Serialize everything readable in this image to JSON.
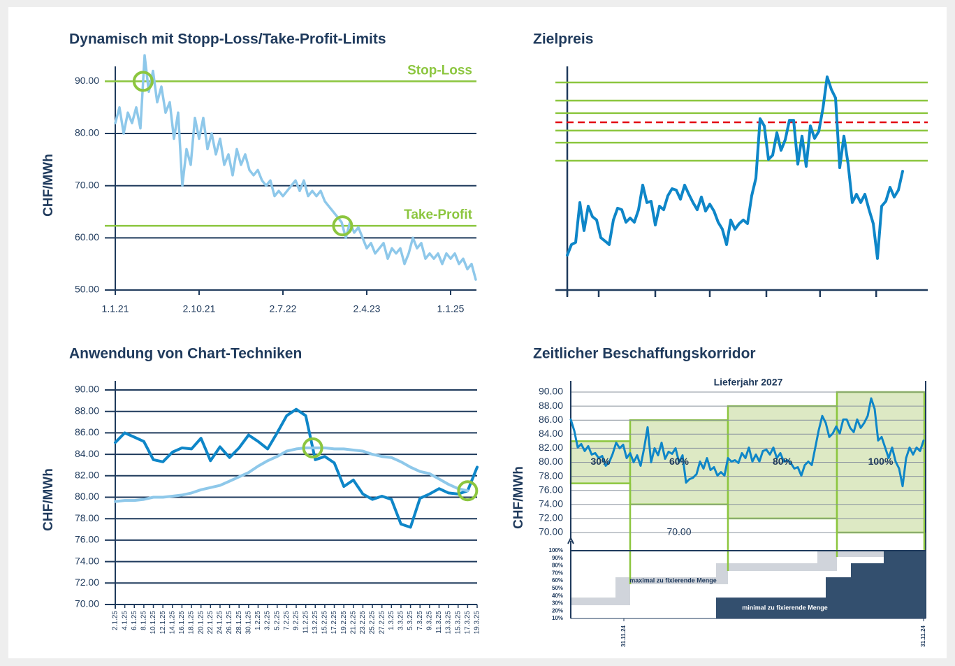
{
  "chart_data": [
    {
      "type": "line",
      "title": "Dynamisch mit Stopp-Loss/Take-Profit-Limits",
      "y_label": "CHF/MWh",
      "categories": [
        "1.1.21",
        null,
        null,
        null,
        null,
        null,
        null,
        null,
        null,
        null,
        null,
        null,
        null,
        null,
        null,
        null,
        null,
        null,
        null,
        null,
        "2.10.21",
        null,
        null,
        null,
        null,
        null,
        null,
        null,
        null,
        null,
        null,
        null,
        null,
        null,
        null,
        null,
        null,
        null,
        null,
        null,
        "2.7.22",
        null,
        null,
        null,
        null,
        null,
        null,
        null,
        null,
        null,
        null,
        null,
        null,
        null,
        null,
        null,
        null,
        null,
        null,
        null,
        "2.4.23",
        null,
        null,
        null,
        null,
        null,
        null,
        null,
        null,
        null,
        null,
        null,
        null,
        null,
        null,
        null,
        null,
        null,
        null,
        null,
        "1.1.25",
        null,
        null,
        null,
        null,
        null,
        null
      ],
      "series": [
        {
          "color": "#8ec8ea",
          "values": [
            82,
            85,
            80,
            84,
            82,
            85,
            81,
            95,
            88,
            92,
            86,
            89,
            84,
            86,
            79,
            84,
            70,
            77,
            74,
            83,
            79,
            83,
            77,
            80,
            76,
            79,
            74,
            76,
            72,
            77,
            74,
            76,
            73,
            72,
            73,
            71,
            70,
            71,
            68,
            69,
            68,
            69,
            70,
            71,
            69,
            71,
            68,
            69,
            68,
            69,
            67,
            66,
            65,
            64,
            63,
            60,
            63,
            61,
            62,
            60,
            58,
            59,
            57,
            58,
            59,
            56,
            58,
            57,
            58,
            55,
            57,
            60,
            58,
            59,
            56,
            57,
            56,
            57,
            55,
            57,
            56,
            57,
            55,
            56,
            54,
            55,
            52
          ]
        }
      ],
      "ylim": [
        50,
        93
      ],
      "yticks": [
        {
          "value": 50,
          "label": "50.00"
        },
        {
          "value": 60,
          "label": "60.00"
        },
        {
          "value": 70,
          "label": "70.00"
        },
        {
          "value": 80,
          "label": "80.00"
        },
        {
          "value": 90,
          "label": "90.00"
        }
      ],
      "grid": true,
      "limits": [
        {
          "label": "Stop-Loss",
          "value": 90,
          "color": "#8cc63f"
        },
        {
          "label": "Take-Profit",
          "value": 62.3,
          "color": "#8cc63f"
        }
      ]
    },
    {
      "type": "line",
      "title": "Zielpreis",
      "series": [
        {
          "color": "#0e86c8",
          "values": [
            15.6,
            20.3,
            21.3,
            39.1,
            26.6,
            37.5,
            32.8,
            31.3,
            23.4,
            21.9,
            20.3,
            31.3,
            36.6,
            35.9,
            30.3,
            32.2,
            30.3,
            35.9,
            46.9,
            39.1,
            39.7,
            29.1,
            37.5,
            35.9,
            42.2,
            45.3,
            44.7,
            40.6,
            46.9,
            42.8,
            39.1,
            35.9,
            41.6,
            35.3,
            38.4,
            35.3,
            30.3,
            27.2,
            20.3,
            31.3,
            27.2,
            29.7,
            31.3,
            29.7,
            42.2,
            50,
            76.6,
            73.4,
            58.4,
            60.3,
            70.3,
            62.5,
            67.2,
            75.9,
            75.9,
            56.3,
            68.8,
            55.3,
            73.4,
            67.8,
            70.9,
            81.3,
            95.3,
            89.7,
            85.9,
            54.7,
            68.8,
            56.3,
            39.1,
            42.8,
            39.1,
            42.8,
            35.9,
            29.7,
            14.1,
            37.5,
            39.7,
            45.9,
            41.6,
            44.7,
            53.1
          ]
        }
      ],
      "xlim": [
        0,
        86
      ],
      "xticks": [
        0,
        7.5,
        21,
        34,
        47.5,
        60.3,
        73.7
      ],
      "ylim": [
        0,
        100
      ],
      "levels": {
        "color": "#8cc63f",
        "values": [
          92.8,
          84.7,
          79.1,
          71.3,
          65.9,
          57.8
        ]
      },
      "target": {
        "color": "#e30613",
        "value": 75
      }
    },
    {
      "type": "line",
      "title": "Anwendung von Chart-Techniken",
      "y_label": "CHF/MWh",
      "categories": [
        "2.1.25",
        "4.1.25",
        "6.1.25",
        "8.1.25",
        "10.1.25",
        "12.1.25",
        "14.1.25",
        "16.1.25",
        "18.1.25",
        "20.1.25",
        "22.1.25",
        "24.1.25",
        "26.1.25",
        "28.1.25",
        "30.1.25",
        "1.2.25",
        "3.2.25",
        "5.2.25",
        "7.2.25",
        "9.2.25",
        "11.2.25",
        "13.2.25",
        "15.2.25",
        "17.2.25",
        "19.2.25",
        "21.2.25",
        "23.2.25",
        "25.2.25",
        "27.2.25",
        "1.3.25",
        "3.3.25",
        "5.3.25",
        "7.3.25",
        "9.3.25",
        "11.3.25",
        "13.3.25",
        "15.3.25",
        "17.3.25",
        "19.3.25"
      ],
      "series": [
        {
          "color": "#0e86c8",
          "values": [
            85.1,
            86.0,
            85.6,
            85.2,
            83.5,
            83.3,
            84.2,
            84.6,
            84.5,
            85.5,
            83.4,
            84.7,
            83.7,
            84.6,
            85.8,
            85.2,
            84.5,
            86.0,
            87.6,
            88.2,
            87.6,
            83.5,
            83.8,
            83.2,
            81.0,
            81.6,
            80.3,
            79.8,
            80.1,
            79.8,
            77.5,
            77.2,
            79.9,
            80.3,
            80.8,
            80.4,
            80.3,
            80.6,
            82.8
          ]
        },
        {
          "color": "#8ec8ea",
          "values": [
            79.6,
            79.7,
            79.7,
            79.8,
            80.0,
            80.0,
            80.1,
            80.2,
            80.4,
            80.7,
            80.9,
            81.1,
            81.5,
            81.9,
            82.3,
            82.9,
            83.4,
            83.8,
            84.3,
            84.5,
            84.6,
            84.6,
            84.6,
            84.5,
            84.5,
            84.4,
            84.3,
            84.0,
            83.8,
            83.7,
            83.3,
            82.8,
            82.4,
            82.2,
            81.7,
            81.2,
            80.8,
            80.6,
            null
          ]
        }
      ],
      "ylim": [
        70,
        90
      ],
      "yticks": [
        {
          "value": 70,
          "label": "70.00"
        },
        {
          "value": 72,
          "label": "72.00"
        },
        {
          "value": 74,
          "label": "74.00"
        },
        {
          "value": 76,
          "label": "76.00"
        },
        {
          "value": 78,
          "label": "78.00"
        },
        {
          "value": 80,
          "label": "80.00"
        },
        {
          "value": 82,
          "label": "82.00"
        },
        {
          "value": 84,
          "label": "84.00"
        },
        {
          "value": 86,
          "label": "86.00"
        },
        {
          "value": 88,
          "label": "88.00"
        },
        {
          "value": 90,
          "label": "90.00"
        }
      ],
      "grid": true,
      "crossing_color": "#8cc63f"
    },
    {
      "type": "line",
      "title": "Zeitlicher Beschaffungskorridor",
      "subtitle": "Lieferjahr 2027",
      "y_label": "CHF/MWh",
      "series": [
        {
          "color": "#0e86c8",
          "values": [
            86.1,
            84.5,
            82.1,
            82.6,
            81.6,
            82.3,
            81.1,
            81.3,
            80.6,
            80.9,
            79.5,
            80.0,
            81.2,
            82.8,
            82.0,
            82.5,
            80.6,
            81.3,
            80.0,
            81.0,
            79.5,
            82.0,
            85.0,
            80.0,
            82.0,
            81.0,
            82.8,
            80.5,
            81.5,
            81.2,
            82.0,
            80.0,
            81.0,
            77.1,
            77.6,
            77.8,
            78.3,
            80.1,
            79.1,
            80.6,
            78.9,
            79.3,
            78.1,
            78.6,
            78.1,
            80.6,
            80.1,
            80.3,
            79.9,
            81.3,
            80.6,
            82.1,
            80.1,
            81.1,
            80.1,
            81.6,
            81.8,
            81.1,
            82.1,
            80.6,
            81.3,
            80.1,
            80.3,
            79.9,
            79.1,
            79.3,
            78.1,
            79.6,
            80.1,
            79.6,
            82.1,
            84.6,
            86.6,
            85.6,
            83.6,
            84.1,
            85.1,
            84.1,
            86.1,
            86.1,
            84.9,
            84.3,
            86.1,
            84.9,
            85.6,
            86.6,
            89.1,
            87.6,
            83.1,
            83.6,
            82.1,
            80.6,
            82.1,
            80.1,
            79.1,
            76.6,
            80.6,
            82.1,
            81.1,
            82.1,
            81.6,
            83.1
          ]
        }
      ],
      "xlim": [
        0,
        101.6
      ],
      "ylim": [
        70,
        90
      ],
      "yticks": [
        {
          "value": 70,
          "label": "70.00"
        },
        {
          "value": 72,
          "label": "72.00"
        },
        {
          "value": 74,
          "label": "74.00"
        },
        {
          "value": 76,
          "label": "76.00"
        },
        {
          "value": 78,
          "label": "78.00"
        },
        {
          "value": 80,
          "label": "80.00"
        },
        {
          "value": 82,
          "label": "82.00"
        },
        {
          "value": 84,
          "label": "84.00"
        },
        {
          "value": 86,
          "label": "86.00"
        },
        {
          "value": 88,
          "label": "88.00"
        },
        {
          "value": 90,
          "label": "90.00"
        }
      ],
      "grid": true,
      "boxes": {
        "color": "#8cc63f",
        "fill": "#dde9c4",
        "items": [
          {
            "label": "30%",
            "x": [
              0,
              17
            ],
            "y": [
              77,
              83
            ]
          },
          {
            "label": "60%",
            "x": [
              17,
              45
            ],
            "y": [
              74,
              86
            ]
          },
          {
            "label": "80%",
            "x": [
              45,
              76.2
            ],
            "y": [
              72,
              88
            ]
          },
          {
            "label": "100%",
            "x": [
              76.2,
              101.2
            ],
            "y": [
              70,
              90
            ]
          }
        ]
      },
      "note": "70.00",
      "quantity": {
        "ylim": [
          10,
          100
        ],
        "yticks": [
          {
            "value": 10,
            "label": "10%"
          },
          {
            "value": 20,
            "label": "20%"
          },
          {
            "value": 30,
            "label": "30%"
          },
          {
            "value": 40,
            "label": "40%"
          },
          {
            "value": 50,
            "label": "50%"
          },
          {
            "value": 60,
            "label": "60%"
          },
          {
            "value": 70,
            "label": "70%"
          },
          {
            "value": 80,
            "label": "80%"
          },
          {
            "value": 90,
            "label": "90%"
          },
          {
            "value": 100,
            "label": "100%"
          }
        ],
        "xticks": [
          {
            "value": 15.2,
            "label": "31.11.24"
          },
          {
            "value": 101,
            "label": "31.11.24"
          }
        ],
        "max": {
          "label": "maximal zu fixierende Menge",
          "color": "#d0d4db",
          "blocks": [
            {
              "x": [
                0,
                12.8
              ],
              "y": [
                27.6,
                37.8
              ]
            },
            {
              "x": [
                12.8,
                17
              ],
              "y": [
                27.6,
                64.7
              ]
            },
            {
              "x": [
                17,
                41.6
              ],
              "y": [
                55.5,
                64.7
              ]
            },
            {
              "x": [
                41.6,
                45
              ],
              "y": [
                55.5,
                83.3
              ]
            },
            {
              "x": [
                45,
                70.6
              ],
              "y": [
                73.1,
                83.3
              ]
            },
            {
              "x": [
                70.6,
                76.2
              ],
              "y": [
                73.1,
                100
              ]
            },
            {
              "x": [
                76.2,
                89.6
              ],
              "y": [
                91.6,
                100
              ]
            }
          ]
        },
        "min": {
          "label": "minimal zu fixierende Menge",
          "color": "#334f6e",
          "blocks": [
            {
              "x": [
                41.6,
                73
              ],
              "y": [
                10,
                37.8
              ]
            },
            {
              "x": [
                73,
                80.2
              ],
              "y": [
                10,
                64.7
              ]
            },
            {
              "x": [
                80.2,
                89.6
              ],
              "y": [
                10,
                83.3
              ]
            },
            {
              "x": [
                89.6,
                101.6
              ],
              "y": [
                10,
                100
              ]
            }
          ]
        }
      }
    }
  ]
}
